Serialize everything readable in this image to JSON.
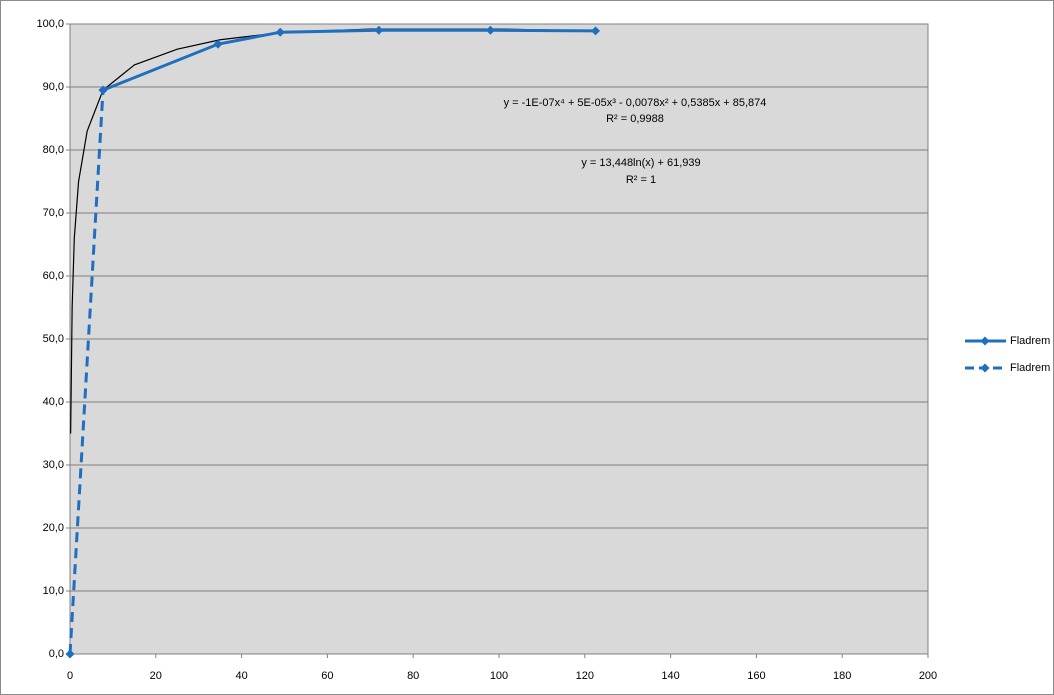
{
  "chart_data": {
    "type": "line",
    "series": [
      {
        "name": "Fladrem",
        "color": "#1f6fbf",
        "dash": false,
        "x": [
          7.7,
          34.5,
          49,
          72,
          98,
          122.5
        ],
        "values": [
          89.5,
          96.8,
          98.7,
          99.0,
          99.0,
          98.9
        ]
      },
      {
        "name": "Fladrem",
        "color": "#1f6fbf",
        "dash": true,
        "x": [
          0,
          7.7
        ],
        "values": [
          0,
          89.5
        ]
      }
    ],
    "trendline": {
      "color": "#000000",
      "x": [
        0.15,
        0.5,
        1,
        2,
        4,
        7.7,
        15,
        25,
        35,
        50,
        70,
        100,
        122.5
      ],
      "values": [
        35,
        55,
        66,
        75,
        83,
        89.5,
        93.5,
        96,
        97.5,
        98.7,
        99.2,
        99.2,
        98.9
      ]
    },
    "annotations": [
      "y = -1E-07x⁴ + 5E-05x³ - 0,0078x² + 0,5385x + 85,874",
      "R² = 0,9988",
      "y = 13,448ln(x) + 61,939",
      "R² = 1"
    ],
    "xlim": [
      0,
      200
    ],
    "xticks": [
      0,
      20,
      40,
      60,
      80,
      100,
      120,
      140,
      160,
      180,
      200
    ],
    "ylim": [
      0,
      100
    ],
    "yticks": [
      {
        "value": 0,
        "label": "0,0"
      },
      {
        "value": 10,
        "label": "10,0"
      },
      {
        "value": 20,
        "label": "20,0"
      },
      {
        "value": 30,
        "label": "30,0"
      },
      {
        "value": 40,
        "label": "40,0"
      },
      {
        "value": 50,
        "label": "50,0"
      },
      {
        "value": 60,
        "label": "60,0"
      },
      {
        "value": 70,
        "label": "70,0"
      },
      {
        "value": 80,
        "label": "80,0"
      },
      {
        "value": 90,
        "label": "90,0"
      },
      {
        "value": 100,
        "label": "100,0"
      }
    ],
    "grid": true,
    "plot_background": "#d9d9d9",
    "legend": "right"
  }
}
